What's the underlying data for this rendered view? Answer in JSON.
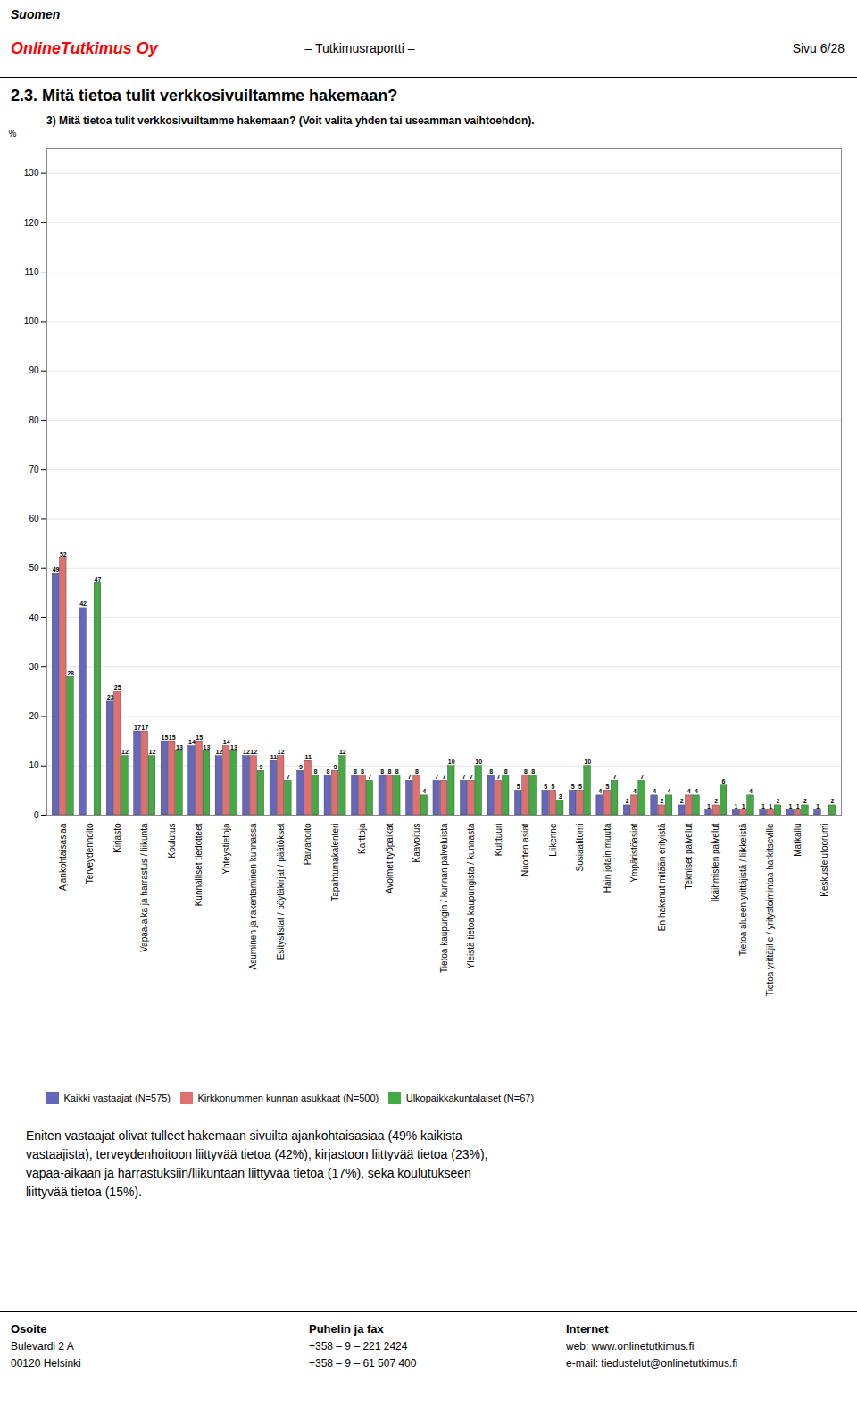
{
  "page": {
    "brand": [
      "Suomen",
      "OnlineTutkimus Oy"
    ],
    "report_title": "– Tutkimusraportti –",
    "page_info": "Sivu 6/28",
    "section_title": "2.3. Mitä tietoa tulit verkkosivuiltamme hakemaan?",
    "body_text": "Eniten vastaajat olivat tulleet hakemaan sivuilta ajankohtaisasiaa (49% kaikista\nvastaajista), terveydenhoitoon liittyvää tietoa (42%), kirjastoon liittyvää tietoa (23%),\nvapaa-aikaan ja harrastuksiin/liikuntaan liittyvää tietoa (17%), sekä koulutukseen\nliittyvää tietoa (15%).",
    "footer": [
      {
        "label": "Osoite",
        "lines": [
          "Bulevardi 2 A",
          "00120 Helsinki"
        ]
      },
      {
        "label": "Puhelin ja fax",
        "lines": [
          "+358 – 9 – 221 2424",
          "+358 – 9 – 61 507 400"
        ]
      },
      {
        "label": "Internet",
        "lines": [
          "web: www.onlinetutkimus.fi",
          "e-mail: tiedustelut@onlinetutkimus.fi"
        ]
      }
    ]
  },
  "chart_data": {
    "type": "bar",
    "title": "3) Mitä tietoa tulit verkkosivuiltamme hakemaan? (Voit valita yhden tai useamman vaihtoehdon).",
    "ylabel": "%",
    "categories": [
      "Ajankohtaisasiaa",
      "Terveydenhoito",
      "Kirjasto",
      "Vapaa-aika ja harrastus / liikunta",
      "Koulutus",
      "Kunnalliset tiedotteet",
      "Yhteystietoja",
      "Asuminen ja rakentaminen kunnassa",
      "Esityslistat / pöytäkirjat / päätökset",
      "Päivähoito",
      "Tapahtumakalenteri",
      "Karttoja",
      "Avoimet työpaikat",
      "Kaavoitus",
      "Tietoa kaupungin / kunnan palveluista",
      "Yleistä tietoa kaupungista / kunnasta",
      "Kulttuuri",
      "Nuorten asiat",
      "Liikenne",
      "Sosiaalitomi",
      "Hain jotain muuta",
      "Ympäristöasiat",
      "En hakenut mitään erityistä",
      "Tekniset palvelut",
      "Ikäihmisten palvelut",
      "Tietoa alueen yrittäjistä / liikkeistä",
      "Tietoa yrittäjille / yritystoimintaa harkitseville",
      "Matkailu",
      "Keskustelufoorumi"
    ],
    "series": [
      {
        "name": "Kaikki vastaajat (N=575)",
        "color": "#6666bb",
        "values": [
          49,
          42,
          23,
          17,
          15,
          14,
          12,
          12,
          11,
          9,
          8,
          8,
          8,
          7,
          7,
          7,
          8,
          5,
          5,
          5,
          4,
          2,
          4,
          2,
          1,
          1,
          1,
          1,
          1
        ]
      },
      {
        "name": "Kirkkonummen kunnan asukkaat (N=500)",
        "color": "#e07070",
        "values": [
          52,
          0,
          25,
          17,
          15,
          15,
          14,
          12,
          12,
          11,
          9,
          8,
          8,
          8,
          7,
          7,
          7,
          8,
          5,
          5,
          5,
          4,
          2,
          4,
          2,
          1,
          1,
          1,
          0
        ]
      },
      {
        "name": "Ulkopaikkakuntalaiset (N=67)",
        "color": "#44aa44",
        "values": [
          28,
          47,
          12,
          12,
          13,
          13,
          13,
          9,
          7,
          8,
          12,
          7,
          8,
          4,
          10,
          10,
          8,
          8,
          3,
          10,
          7,
          7,
          4,
          4,
          6,
          4,
          2,
          2,
          2
        ]
      }
    ],
    "ylim": [
      0,
      135
    ],
    "yticks": [
      0,
      10,
      20,
      30,
      40,
      50,
      60,
      70,
      80,
      90,
      100,
      110,
      120,
      130
    ],
    "grid": true,
    "data_labels": true,
    "legend": "bottom"
  }
}
